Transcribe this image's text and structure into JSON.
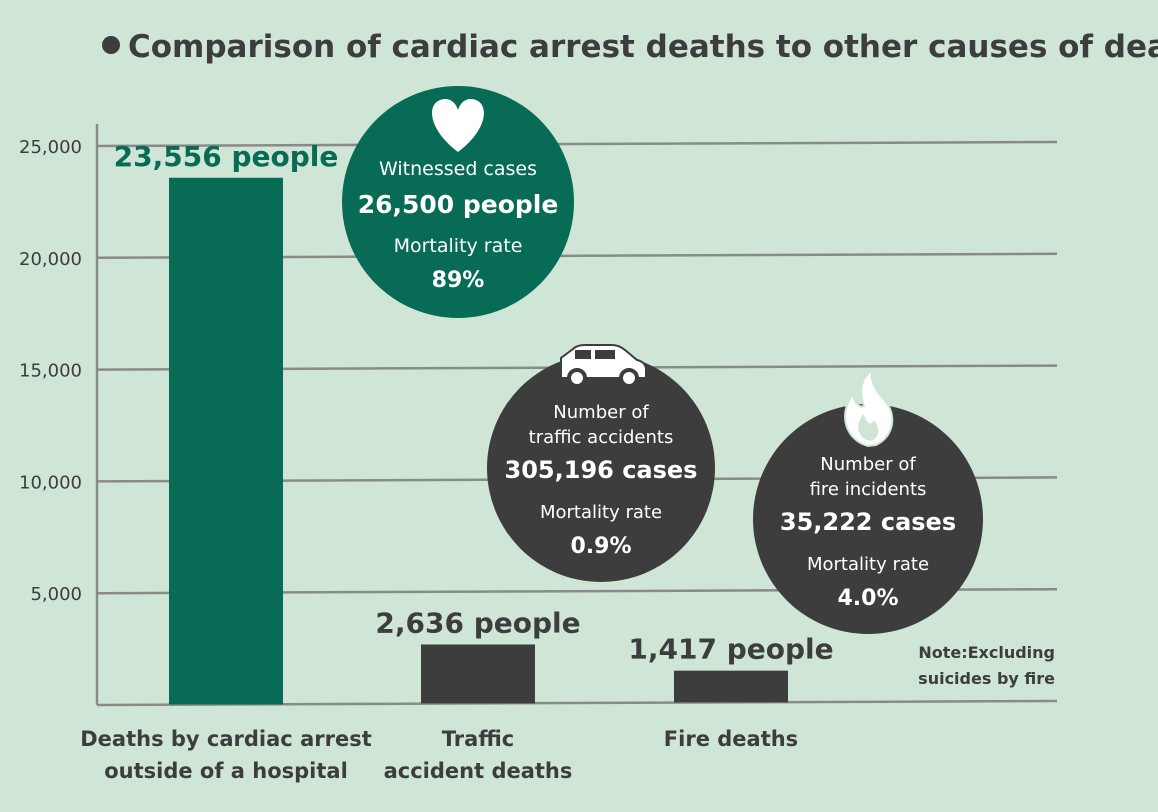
{
  "chart_data": {
    "type": "bar",
    "title": "Comparison of cardiac arrest deaths to other causes of death",
    "categories": [
      [
        "Deaths by cardiac arrest",
        "outside of a hospital"
      ],
      [
        "Traffic",
        "accident deaths"
      ],
      [
        "Fire deaths"
      ]
    ],
    "values": [
      23556,
      2636,
      1417
    ],
    "data_labels": [
      "23,556 people",
      "2,636 people",
      "1,417 people"
    ],
    "bar_colors": [
      "#076b55",
      "#3d3d3d",
      "#3d3d3d"
    ],
    "label_colors": [
      "#076b55",
      "#3d3d3d",
      "#3d3d3d"
    ],
    "ylim": [
      0,
      25000
    ],
    "yticks": [
      5000,
      10000,
      15000,
      20000,
      25000
    ],
    "ytick_labels": [
      "5,000",
      "10,000",
      "15,000",
      "20,000",
      "25,000"
    ],
    "grid": true,
    "xlabel": "",
    "ylabel": ""
  },
  "callouts": [
    {
      "icon": "heart-icon",
      "color": "#076b55",
      "lines": [
        "Witnessed cases",
        "26,500 people",
        "Mortality rate",
        "89%"
      ]
    },
    {
      "icon": "car-icon",
      "color": "#3d3d3d",
      "lines": [
        "Number of",
        "traffic accidents",
        "305,196 cases",
        "Mortality rate",
        "0.9%"
      ]
    },
    {
      "icon": "flame-icon",
      "color": "#3d3d3d",
      "lines": [
        "Number of",
        "fire incidents",
        "35,222 cases",
        "Mortality rate",
        "4.0%"
      ]
    }
  ],
  "note": [
    "Note:Excluding",
    "suicides by fire"
  ],
  "colors": {
    "background": "#cfe6d7",
    "grid": "#8a8a8a",
    "text_dark": "#3d3d3d",
    "accent_green": "#076b55"
  }
}
